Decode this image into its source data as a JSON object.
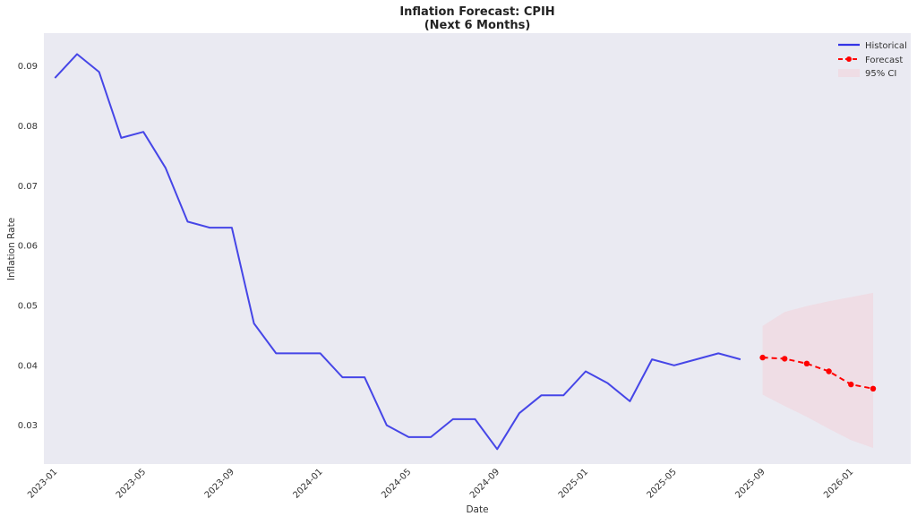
{
  "chart_data": {
    "type": "line",
    "title_line1": "Inflation Forecast: CPIH",
    "title_line2": "(Next 6 Months)",
    "xlabel": "Date",
    "ylabel": "Inflation Rate",
    "ylim": [
      0.0235,
      0.0955
    ],
    "xlim": [
      "2022-12",
      "2026-03"
    ],
    "grid": false,
    "legend_position": "top-right",
    "x_ticks": [
      "2023-01",
      "2023-05",
      "2023-09",
      "2024-01",
      "2024-05",
      "2024-09",
      "2025-01",
      "2025-05",
      "2025-09",
      "2026-01"
    ],
    "y_ticks": [
      "0.03",
      "0.04",
      "0.05",
      "0.06",
      "0.07",
      "0.08",
      "0.09"
    ],
    "series": [
      {
        "name": "Historical",
        "color": "#3434e6",
        "x": [
          "2023-01",
          "2023-02",
          "2023-03",
          "2023-04",
          "2023-05",
          "2023-06",
          "2023-07",
          "2023-08",
          "2023-09",
          "2023-10",
          "2023-11",
          "2023-12",
          "2024-01",
          "2024-02",
          "2024-03",
          "2024-04",
          "2024-05",
          "2024-06",
          "2024-07",
          "2024-08",
          "2024-09",
          "2024-10",
          "2024-11",
          "2024-12",
          "2025-01",
          "2025-02",
          "2025-03",
          "2025-04",
          "2025-05",
          "2025-06",
          "2025-07",
          "2025-08"
        ],
        "values": [
          0.088,
          0.092,
          0.089,
          0.078,
          0.079,
          0.073,
          0.064,
          0.063,
          0.063,
          0.047,
          0.042,
          0.042,
          0.042,
          0.038,
          0.038,
          0.03,
          0.028,
          0.028,
          0.031,
          0.031,
          0.026,
          0.032,
          0.035,
          0.035,
          0.039,
          0.037,
          0.034,
          0.041,
          0.04,
          0.041,
          0.042,
          0.041
        ]
      },
      {
        "name": "Forecast",
        "color": "#ff0000",
        "x": [
          "2025-09",
          "2025-10",
          "2025-11",
          "2025-12",
          "2026-01",
          "2026-02"
        ],
        "values": [
          0.0413,
          0.0411,
          0.0403,
          0.039,
          0.0368,
          0.0361
        ]
      }
    ],
    "confidence_interval": {
      "name": "95% CI",
      "color": "#ffb6c1",
      "x": [
        "2025-09",
        "2025-10",
        "2025-11",
        "2025-12",
        "2026-01",
        "2026-02"
      ],
      "lower": [
        0.0351,
        0.0332,
        0.0314,
        0.0294,
        0.0275,
        0.0262
      ],
      "upper": [
        0.0466,
        0.0489,
        0.0499,
        0.0507,
        0.0514,
        0.0521
      ]
    }
  }
}
